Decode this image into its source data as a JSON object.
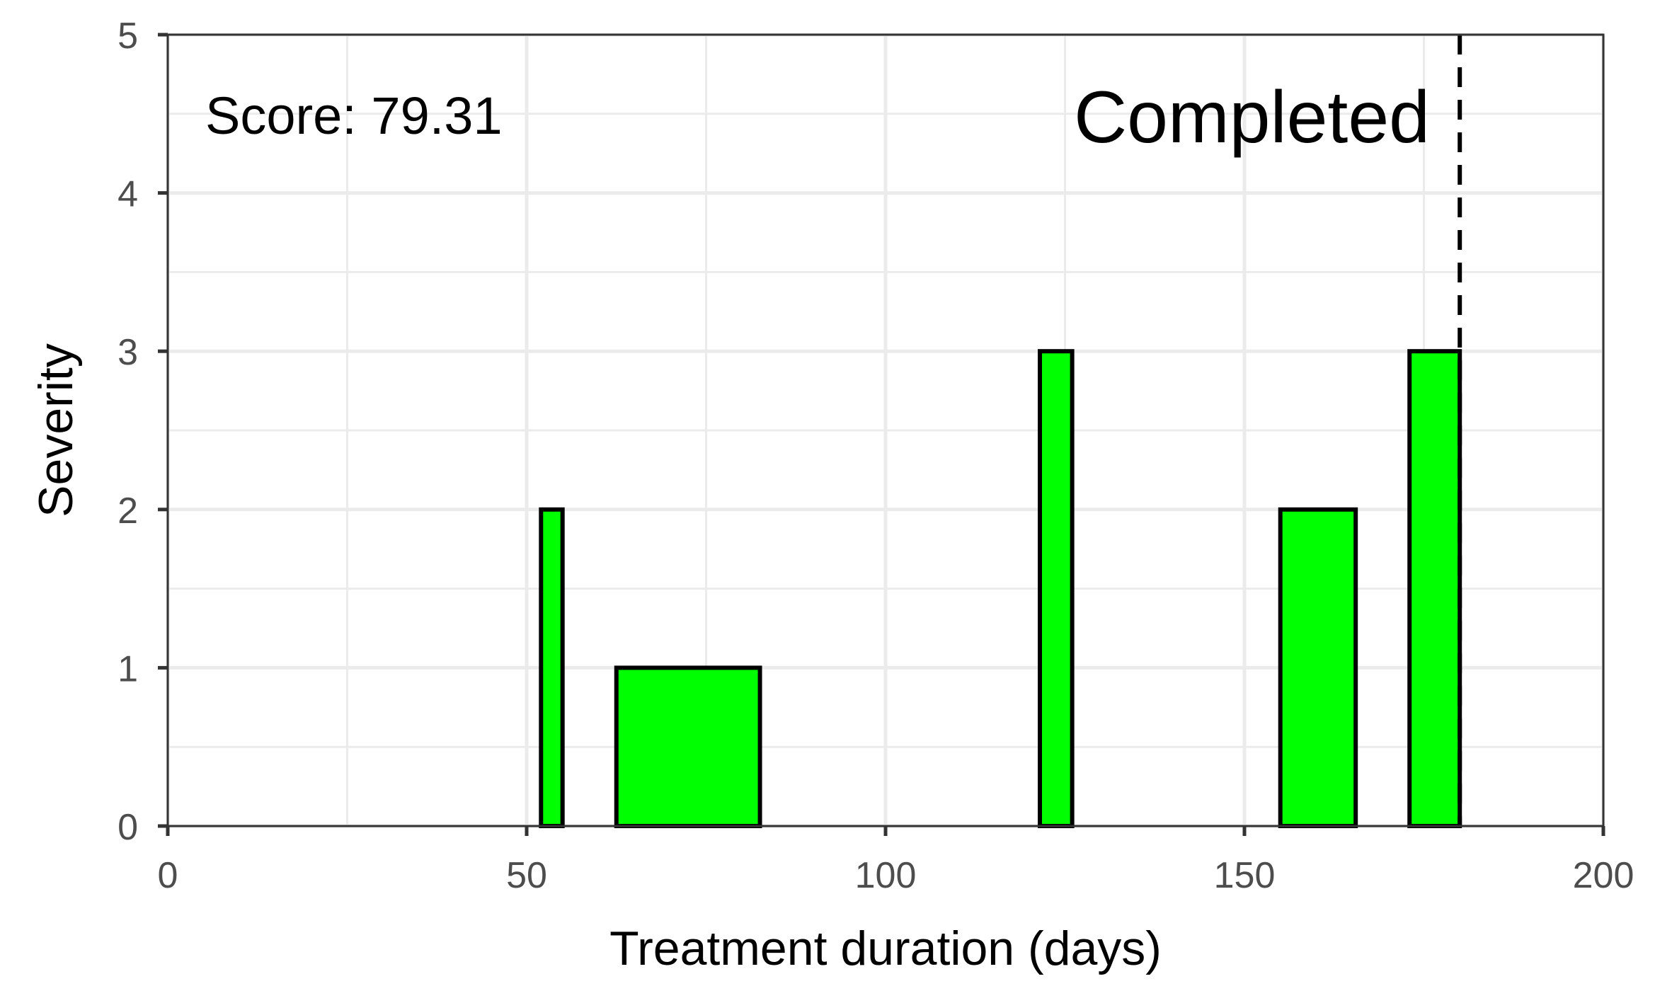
{
  "chart_data": {
    "type": "bar",
    "xlabel": "Treatment duration (days)",
    "ylabel": "Severity",
    "xlim": [
      0,
      200
    ],
    "ylim": [
      0,
      5
    ],
    "x_ticks": [
      0,
      50,
      100,
      150,
      200
    ],
    "x_tick_labels": [
      "0",
      "50",
      "100",
      "150",
      "200"
    ],
    "y_ticks": [
      0,
      1,
      2,
      3,
      4,
      5
    ],
    "y_tick_labels": [
      "0",
      "1",
      "2",
      "3",
      "4",
      "5"
    ],
    "grid": true,
    "bar_fill": "#00ff00",
    "bar_stroke": "#000000",
    "bars": [
      {
        "x_start": 52,
        "x_end": 55,
        "value": 2
      },
      {
        "x_start": 62.5,
        "x_end": 82.5,
        "value": 1
      },
      {
        "x_start": 121.5,
        "x_end": 126,
        "value": 3
      },
      {
        "x_start": 155,
        "x_end": 165.5,
        "value": 2
      },
      {
        "x_start": 173,
        "x_end": 180,
        "value": 3
      }
    ],
    "reference_line": {
      "x": 180,
      "style": "dashed",
      "color": "#000000"
    },
    "annotations": {
      "score": "Score: 79.31",
      "status": "Completed"
    }
  }
}
